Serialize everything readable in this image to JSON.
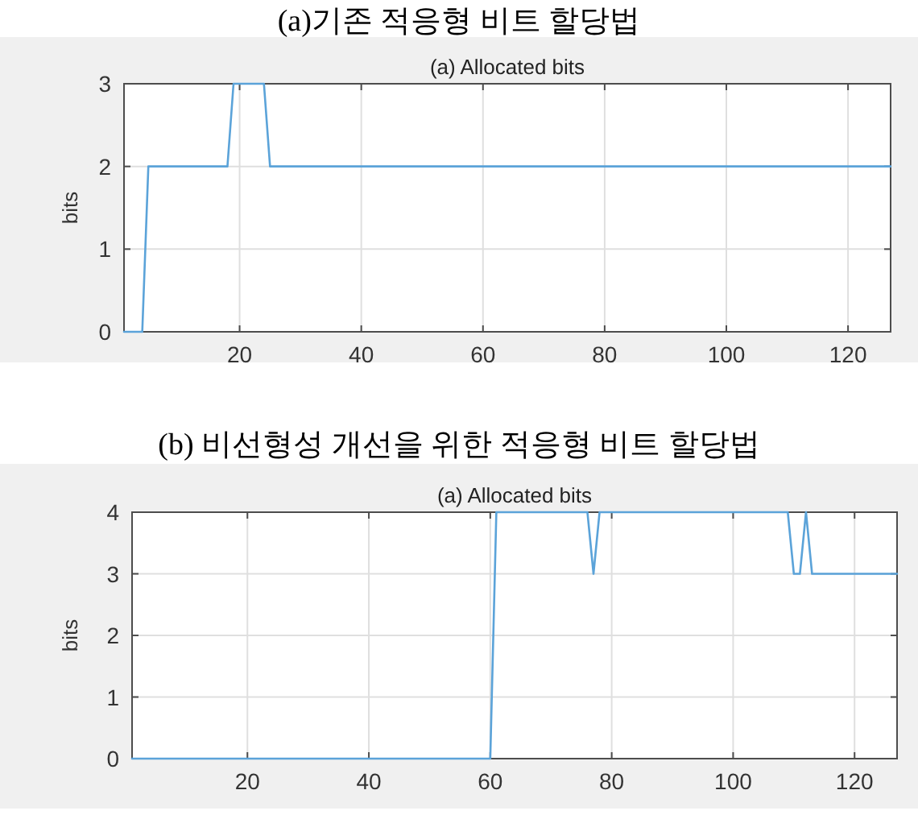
{
  "chart_data": [
    {
      "type": "line",
      "title": "(a)기존 적응형 비트 할당법",
      "subtitle": "(a) Allocated bits",
      "ylabel": "bits",
      "x": [
        1,
        4,
        5,
        18,
        19,
        24,
        25,
        127
      ],
      "series": [
        {
          "color": "#5ba3d9",
          "values": [
            0,
            0,
            2,
            2,
            3,
            3,
            2,
            2
          ]
        }
      ],
      "xlim": [
        1,
        127
      ],
      "ylim": [
        0,
        3
      ],
      "xticks": [
        20,
        40,
        60,
        80,
        100,
        120
      ],
      "yticks": [
        0,
        1,
        2,
        3
      ],
      "grid": true
    },
    {
      "type": "line",
      "title": "(b) 비선형성 개선을 위한 적응형 비트 할당법",
      "subtitle": "(a) Allocated bits",
      "ylabel": "bits",
      "x": [
        1,
        60,
        61,
        76,
        77,
        78,
        109,
        110,
        111,
        112,
        113,
        127
      ],
      "series": [
        {
          "color": "#5ba3d9",
          "values": [
            0,
            0,
            4,
            4,
            3,
            4,
            4,
            3,
            3,
            4,
            3,
            3
          ]
        }
      ],
      "xlim": [
        1,
        127
      ],
      "ylim": [
        0,
        4
      ],
      "xticks": [
        20,
        40,
        60,
        80,
        100,
        120
      ],
      "yticks": [
        0,
        1,
        2,
        3,
        4
      ],
      "grid": true
    }
  ]
}
